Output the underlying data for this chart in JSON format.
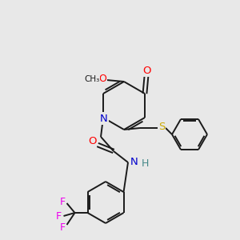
{
  "bg_color": "#e8e8e8",
  "bond_color": "#1a1a1a",
  "atom_colors": {
    "O": "#ff0000",
    "N": "#0000cc",
    "S": "#ccaa00",
    "F": "#ee00ee",
    "H": "#448888",
    "C": "#1a1a1a"
  },
  "figsize": [
    3.0,
    3.0
  ],
  "dpi": 100,
  "lw": 1.4
}
